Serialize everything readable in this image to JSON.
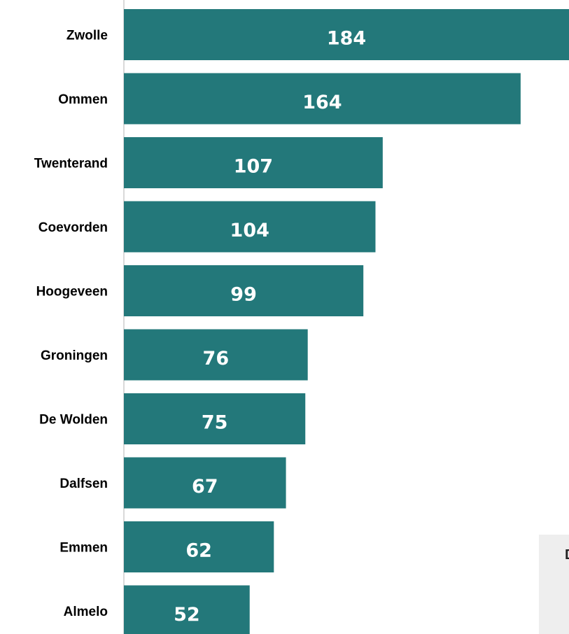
{
  "colors": {
    "bar": "#23787a",
    "axis": "#d9d9d9",
    "label": "#000000",
    "value_label": "#ffffff"
  },
  "chart_data": {
    "type": "bar",
    "orientation": "horizontal",
    "title": "",
    "xlabel": "",
    "ylabel": "",
    "categories": [
      "Zwolle",
      "Ommen",
      "Twenterand",
      "Coevorden",
      "Hoogeveen",
      "Groningen",
      "De Wolden",
      "Dalfsen",
      "Emmen",
      "Almelo"
    ],
    "values": [
      184,
      164,
      107,
      104,
      99,
      76,
      75,
      67,
      62,
      52
    ],
    "xlim": [
      0,
      184
    ],
    "grid": false,
    "legend": "none",
    "data_labels": true
  },
  "overlay_box": {
    "text": "D"
  }
}
